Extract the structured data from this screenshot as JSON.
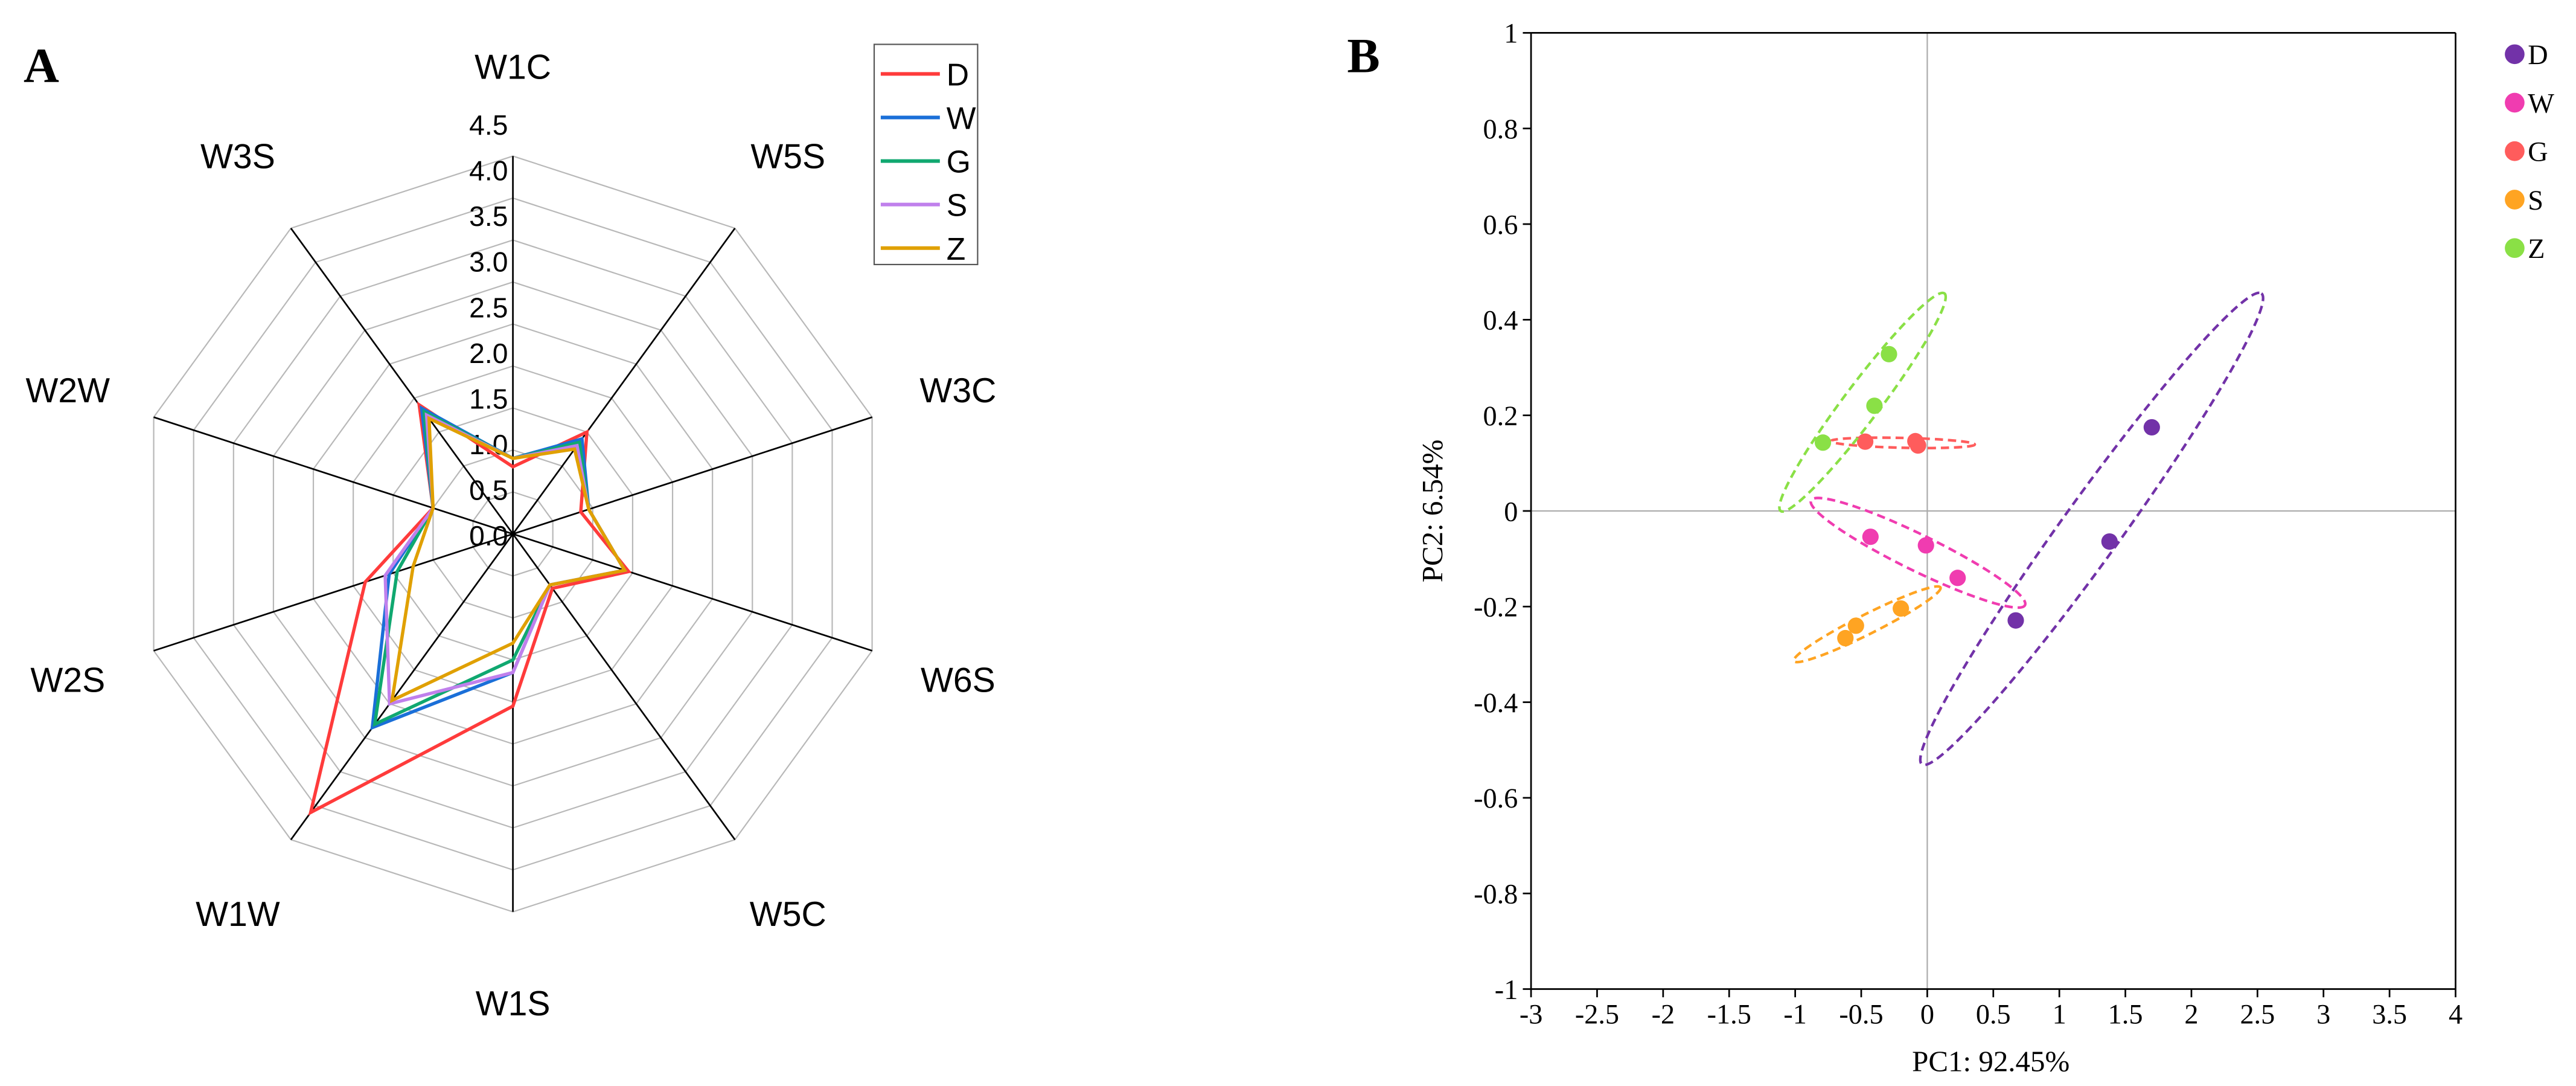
{
  "chart_data": [
    {
      "panel_label": "A",
      "type": "radar",
      "axes": [
        "W1C",
        "W5S",
        "W3C",
        "W6S",
        "W5C",
        "W1S",
        "W1W",
        "W2S",
        "W2W",
        "W3S"
      ],
      "radial_ticks": [
        "0.0",
        "0.5",
        "1.0",
        "1.5",
        "2.0",
        "2.5",
        "3.0",
        "3.5",
        "4.0",
        "4.5"
      ],
      "rlim": [
        0,
        4.5
      ],
      "grid": true,
      "legend_placement": "top-right",
      "series": [
        {
          "name": "D",
          "color": "#ff3b3b",
          "values": [
            0.8,
            1.5,
            0.85,
            1.45,
            0.8,
            2.05,
            4.1,
            1.85,
            1.0,
            1.9
          ]
        },
        {
          "name": "W",
          "color": "#1a6fd8",
          "values": [
            0.9,
            1.4,
            0.95,
            1.4,
            0.75,
            1.65,
            2.85,
            1.55,
            1.0,
            1.85
          ]
        },
        {
          "name": "G",
          "color": "#10a870",
          "values": [
            0.9,
            1.35,
            0.95,
            1.4,
            0.75,
            1.5,
            2.8,
            1.45,
            1.0,
            1.8
          ]
        },
        {
          "name": "S",
          "color": "#c080ec",
          "values": [
            0.9,
            1.3,
            0.95,
            1.4,
            0.75,
            1.65,
            2.5,
            1.6,
            1.0,
            1.75
          ]
        },
        {
          "name": "Z",
          "color": "#e0a000",
          "values": [
            0.9,
            1.25,
            0.95,
            1.4,
            0.75,
            1.3,
            2.45,
            1.25,
            1.0,
            1.7
          ]
        }
      ]
    },
    {
      "panel_label": "B",
      "type": "scatter",
      "xlabel": "PC1: 92.45%",
      "ylabel": "PC2: 6.54%",
      "xlim": [
        -3,
        4
      ],
      "ylim": [
        -1,
        1
      ],
      "xticks": [
        "-3",
        "-2.5",
        "-2",
        "-1.5",
        "-1",
        "-0.5",
        "0",
        "0.5",
        "1",
        "1.5",
        "2",
        "2.5",
        "3",
        "3.5",
        "4"
      ],
      "yticks": [
        "-1",
        "-0.8",
        "-0.6",
        "-0.4",
        "-0.2",
        "0",
        "0.2",
        "0.4",
        "0.6",
        "0.8",
        "1"
      ],
      "legend_placement": "right",
      "series": [
        {
          "name": "D",
          "color": "#7232a8",
          "points": [
            [
              1.7,
              0.175
            ],
            [
              1.38,
              -0.064
            ],
            [
              0.67,
              -0.229
            ]
          ],
          "ellipse": [
            [
              -0.04,
              -0.53
            ],
            [
              2.53,
              0.455
            ]
          ]
        },
        {
          "name": "W",
          "color": "#f03cb0",
          "points": [
            [
              -0.43,
              -0.054
            ],
            [
              -0.01,
              -0.072
            ],
            [
              0.23,
              -0.14
            ]
          ],
          "ellipse": [
            [
              -0.88,
              0.022
            ],
            [
              0.74,
              -0.197
            ]
          ]
        },
        {
          "name": "G",
          "color": "#ff5c5c",
          "points": [
            [
              -0.47,
              0.145
            ],
            [
              -0.09,
              0.146
            ],
            [
              -0.07,
              0.137
            ]
          ],
          "ellipse": [
            [
              -0.73,
              0.146
            ],
            [
              0.36,
              0.139
            ]
          ]
        },
        {
          "name": "S",
          "color": "#ffa422",
          "points": [
            [
              -0.2,
              -0.204
            ],
            [
              -0.54,
              -0.24
            ],
            [
              -0.62,
              -0.266
            ]
          ],
          "ellipse": [
            [
              -1.01,
              -0.314
            ],
            [
              0.1,
              -0.16
            ]
          ]
        },
        {
          "name": "Z",
          "color": "#8ae046",
          "points": [
            [
              -0.79,
              0.143
            ],
            [
              -0.4,
              0.22
            ],
            [
              -0.29,
              0.328
            ]
          ],
          "ellipse": [
            [
              -1.11,
              0.0
            ],
            [
              0.13,
              0.455
            ]
          ]
        }
      ]
    }
  ]
}
